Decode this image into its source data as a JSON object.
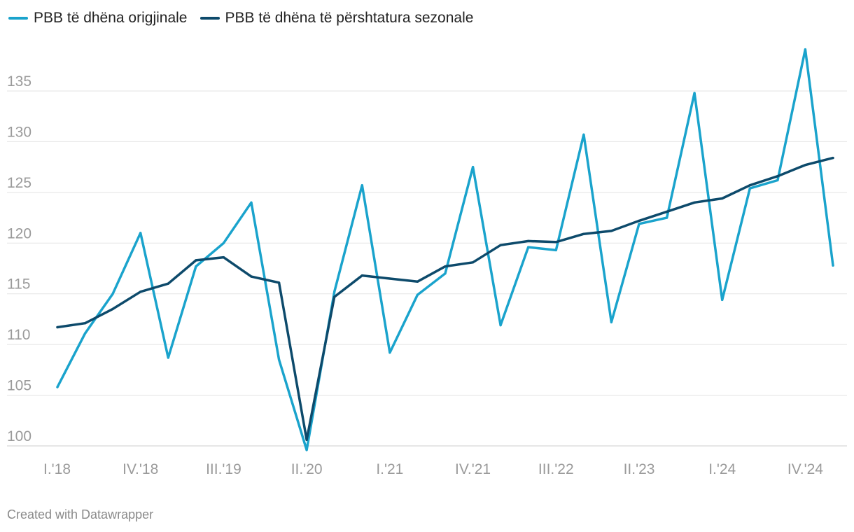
{
  "legend": [
    {
      "label": "PBB të dhëna origjinale",
      "color": "#1aa3cc"
    },
    {
      "label": "PBB të dhëna të përshtatura sezonale",
      "color": "#0d4a6b"
    }
  ],
  "footer": "Created with Datawrapper",
  "chart_data": {
    "type": "line",
    "x": [
      "I.'18",
      "II.'18",
      "III.'18",
      "IV.'18",
      "I.'19",
      "II.'19",
      "III.'19",
      "IV.'19",
      "I.'20",
      "II.'20",
      "III.'20",
      "IV.'20",
      "I.'21",
      "II.'21",
      "III.'21",
      "IV.'21",
      "I.'22",
      "II.'22",
      "III.'22",
      "IV.'22",
      "I.'23",
      "II.'23",
      "III.'23",
      "IV.'23",
      "I.'24",
      "II.'24",
      "III.'24",
      "IV.'24",
      "I.'25"
    ],
    "x_tick_labels": [
      "I.'18",
      "IV.'18",
      "III.'19",
      "II.'20",
      "I.'21",
      "IV.'21",
      "III.'22",
      "II.'23",
      "I.'24",
      "IV.'24"
    ],
    "y_ticks": [
      100,
      105,
      110,
      115,
      120,
      125,
      130,
      135
    ],
    "ylim": [
      100,
      139
    ],
    "grid": true,
    "legend_position": "top-left",
    "series": [
      {
        "name": "PBB të dhëna origjinale",
        "color": "#1aa3cc",
        "values": [
          105.8,
          111.1,
          115.0,
          121.0,
          108.7,
          117.7,
          120.0,
          124.0,
          108.5,
          99.6,
          115.2,
          125.7,
          109.2,
          114.9,
          117.0,
          127.5,
          111.9,
          119.6,
          119.3,
          130.7,
          112.2,
          121.9,
          122.5,
          134.8,
          114.4,
          125.4,
          126.2,
          139.1,
          117.8
        ]
      },
      {
        "name": "PBB të dhëna të përshtatura sezonale",
        "color": "#0d4a6b",
        "values": [
          111.7,
          112.1,
          113.5,
          115.2,
          116.0,
          118.3,
          118.6,
          116.7,
          116.1,
          100.6,
          114.7,
          116.8,
          116.5,
          116.2,
          117.7,
          118.1,
          119.8,
          120.2,
          120.1,
          120.9,
          121.2,
          122.2,
          123.1,
          124.0,
          124.4,
          125.7,
          126.6,
          127.7,
          128.4
        ]
      }
    ]
  }
}
